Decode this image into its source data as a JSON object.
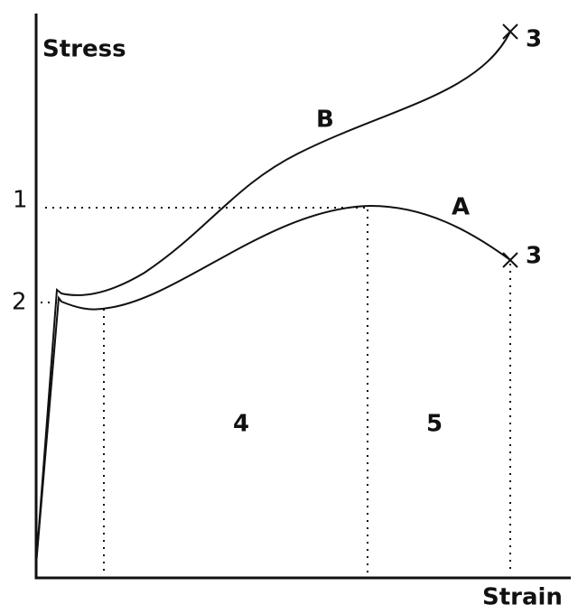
{
  "axes": {
    "y_label": "Stress",
    "x_label": "Strain"
  },
  "levels": [
    "1",
    "2"
  ],
  "curves": [
    {
      "name": "A",
      "end": "3"
    },
    {
      "name": "B",
      "end": "3"
    }
  ],
  "regions": [
    "4",
    "5"
  ]
}
